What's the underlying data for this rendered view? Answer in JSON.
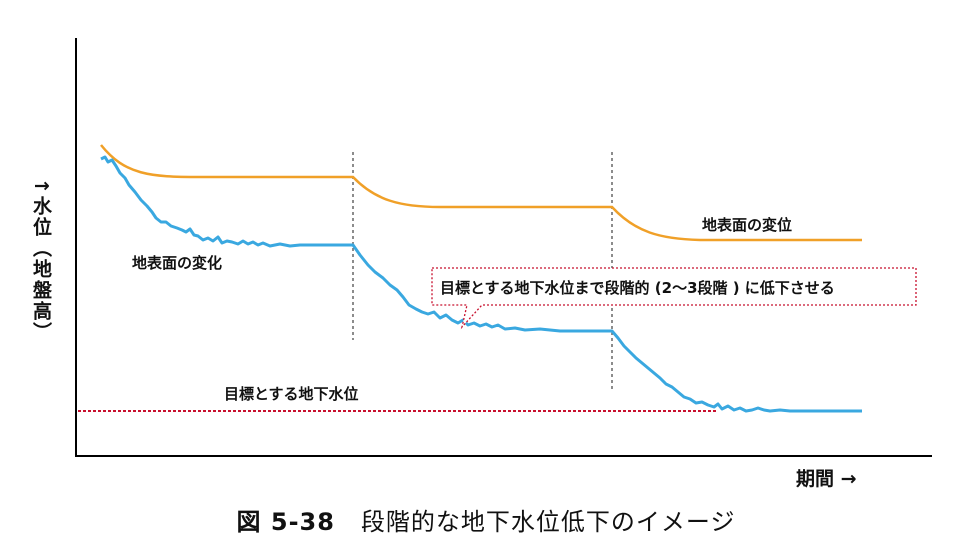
{
  "axes": {
    "y_label": "↑水位（地盤高）",
    "x_label": "期間 →"
  },
  "labels": {
    "surface_change_top": "地表面の変位",
    "surface_change_left": "地表面の変化",
    "callout": "目標とする地下水位まで段階的 (2～3段階 ) に低下させる",
    "target_level": "目標とする地下水位"
  },
  "caption": {
    "number": "図 5-38",
    "title": "段階的な地下水位低下のイメージ"
  },
  "colors": {
    "surface_line": "#f0a028",
    "groundwater_line": "#3aa8e0",
    "target_line": "#c8102e",
    "stage_divider": "#666666",
    "axis": "#000000"
  }
}
